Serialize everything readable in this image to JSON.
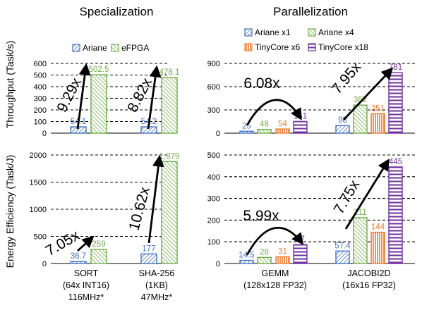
{
  "titles": {
    "left": "Specialization",
    "right": "Parallelization"
  },
  "ylabels": {
    "top": "Throughput (Task/s)",
    "bottom": "Energy Efficiency (Task/J)"
  },
  "colors": {
    "Ariane": "#4472C4",
    "eFPGA": "#70AD47",
    "Ariane x1": "#4472C4",
    "Ariane x4": "#70AD47",
    "TinyCore x6": "#ED7D31",
    "TinyCore x18": "#7030A0"
  },
  "legend_left": [
    "Ariane",
    "eFPGA"
  ],
  "legend_right": [
    "Ariane x1",
    "Ariane x4",
    "TinyCore x6",
    "TinyCore x18"
  ],
  "xcats_left": [
    {
      "lines": [
        "SORT",
        "(64x INT16)",
        "116MHz*"
      ]
    },
    {
      "lines": [
        "SHA-256",
        "(1KB)",
        "47MHz*"
      ]
    }
  ],
  "xcats_right": [
    {
      "lines": [
        "GEMM",
        "(128x128 FP32)"
      ]
    },
    {
      "lines": [
        "JACOBI2D",
        "(16x16 FP32)"
      ]
    }
  ],
  "chart_data": [
    {
      "type": "bar",
      "id": "spec-throughput",
      "ylabel": "Throughput (Task/s)",
      "title": "Specialization",
      "ylim": [
        0,
        600
      ],
      "yticks": [
        0,
        100,
        200,
        300,
        400,
        500,
        600
      ],
      "categories": [
        "SORT",
        "SHA-256"
      ],
      "series": [
        {
          "name": "Ariane",
          "values": [
            54.1,
            54.2
          ],
          "labels": [
            "54.1",
            "54.2"
          ]
        },
        {
          "name": "eFPGA",
          "values": [
            502.5,
            478.1
          ],
          "labels": [
            "502.5",
            "478.1"
          ]
        }
      ],
      "annotations": [
        {
          "text": "9.29x",
          "category": 0
        },
        {
          "text": "8.82x",
          "category": 1
        }
      ]
    },
    {
      "type": "bar",
      "id": "par-throughput",
      "title": "Parallelization",
      "ylim": [
        0,
        900
      ],
      "yticks": [
        0,
        300,
        600,
        900
      ],
      "categories": [
        "GEMM",
        "JACOBI2D"
      ],
      "series": [
        {
          "name": "Ariane x1",
          "values": [
            25,
            98
          ],
          "labels": [
            "25",
            "98"
          ]
        },
        {
          "name": "Ariane x4",
          "values": [
            48,
            362
          ],
          "labels": [
            "48",
            "362"
          ]
        },
        {
          "name": "TinyCore x6",
          "values": [
            54,
            251
          ],
          "labels": [
            "54",
            "251"
          ]
        },
        {
          "name": "TinyCore x18",
          "values": [
            151,
            781
          ],
          "labels": [
            "151",
            "781"
          ]
        }
      ],
      "annotations": [
        {
          "text": "6.08x",
          "category": 0
        },
        {
          "text": "7.95x",
          "category": 1
        }
      ]
    },
    {
      "type": "bar",
      "id": "spec-efficiency",
      "ylabel": "Energy Efficiency (Task/J)",
      "ylim": [
        0,
        2000
      ],
      "yticks": [
        0,
        500,
        1000,
        1500,
        2000
      ],
      "categories": [
        "SORT",
        "SHA-256"
      ],
      "series": [
        {
          "name": "Ariane",
          "values": [
            36.7,
            177
          ],
          "labels": [
            "36.7",
            "177"
          ]
        },
        {
          "name": "eFPGA",
          "values": [
            259,
            1879
          ],
          "labels": [
            "259",
            "1,879"
          ]
        }
      ],
      "annotations": [
        {
          "text": "7.05x",
          "category": 0
        },
        {
          "text": "10.62x",
          "category": 1
        }
      ]
    },
    {
      "type": "bar",
      "id": "par-efficiency",
      "ylim": [
        0,
        500
      ],
      "yticks": [
        0,
        100,
        200,
        300,
        400,
        500
      ],
      "categories": [
        "GEMM",
        "JACOBI2D"
      ],
      "series": [
        {
          "name": "Ariane x1",
          "values": [
            14.5,
            57.4
          ],
          "labels": [
            "14.5",
            "57.4"
          ]
        },
        {
          "name": "Ariane x4",
          "values": [
            28,
            211
          ],
          "labels": [
            "28",
            "211"
          ]
        },
        {
          "name": "TinyCore x6",
          "values": [
            31,
            144
          ],
          "labels": [
            "31",
            "144"
          ]
        },
        {
          "name": "TinyCore x18",
          "values": [
            87,
            445
          ],
          "labels": [
            "87",
            "445"
          ]
        }
      ],
      "annotations": [
        {
          "text": "5.99x",
          "category": 0
        },
        {
          "text": "7.75x",
          "category": 1
        }
      ]
    }
  ]
}
